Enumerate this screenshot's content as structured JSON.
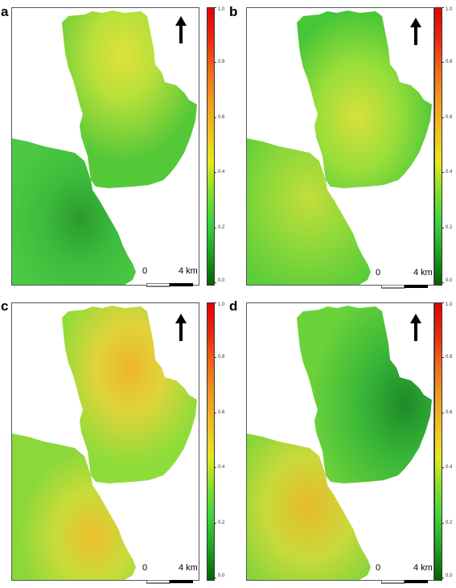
{
  "panels": [
    {
      "letter": "a",
      "palette": "a"
    },
    {
      "letter": "b",
      "palette": "b"
    },
    {
      "letter": "c",
      "palette": "c"
    },
    {
      "letter": "d",
      "palette": "d"
    }
  ],
  "colorbar": {
    "ticks": [
      "1.0",
      "0.8",
      "0.6",
      "0.4",
      "0.2",
      "0.0"
    ],
    "min": 0.0,
    "max": 1.0,
    "colors": [
      "#006400",
      "#1fa01f",
      "#3cd23c",
      "#7fe02a",
      "#e8e81e",
      "#f0c020",
      "#f09a20",
      "#f06a18",
      "#e82a10",
      "#e80000"
    ]
  },
  "scalebar": {
    "start_label": "0",
    "end_label": "4 km"
  },
  "north_arrow": "north-arrow-icon"
}
